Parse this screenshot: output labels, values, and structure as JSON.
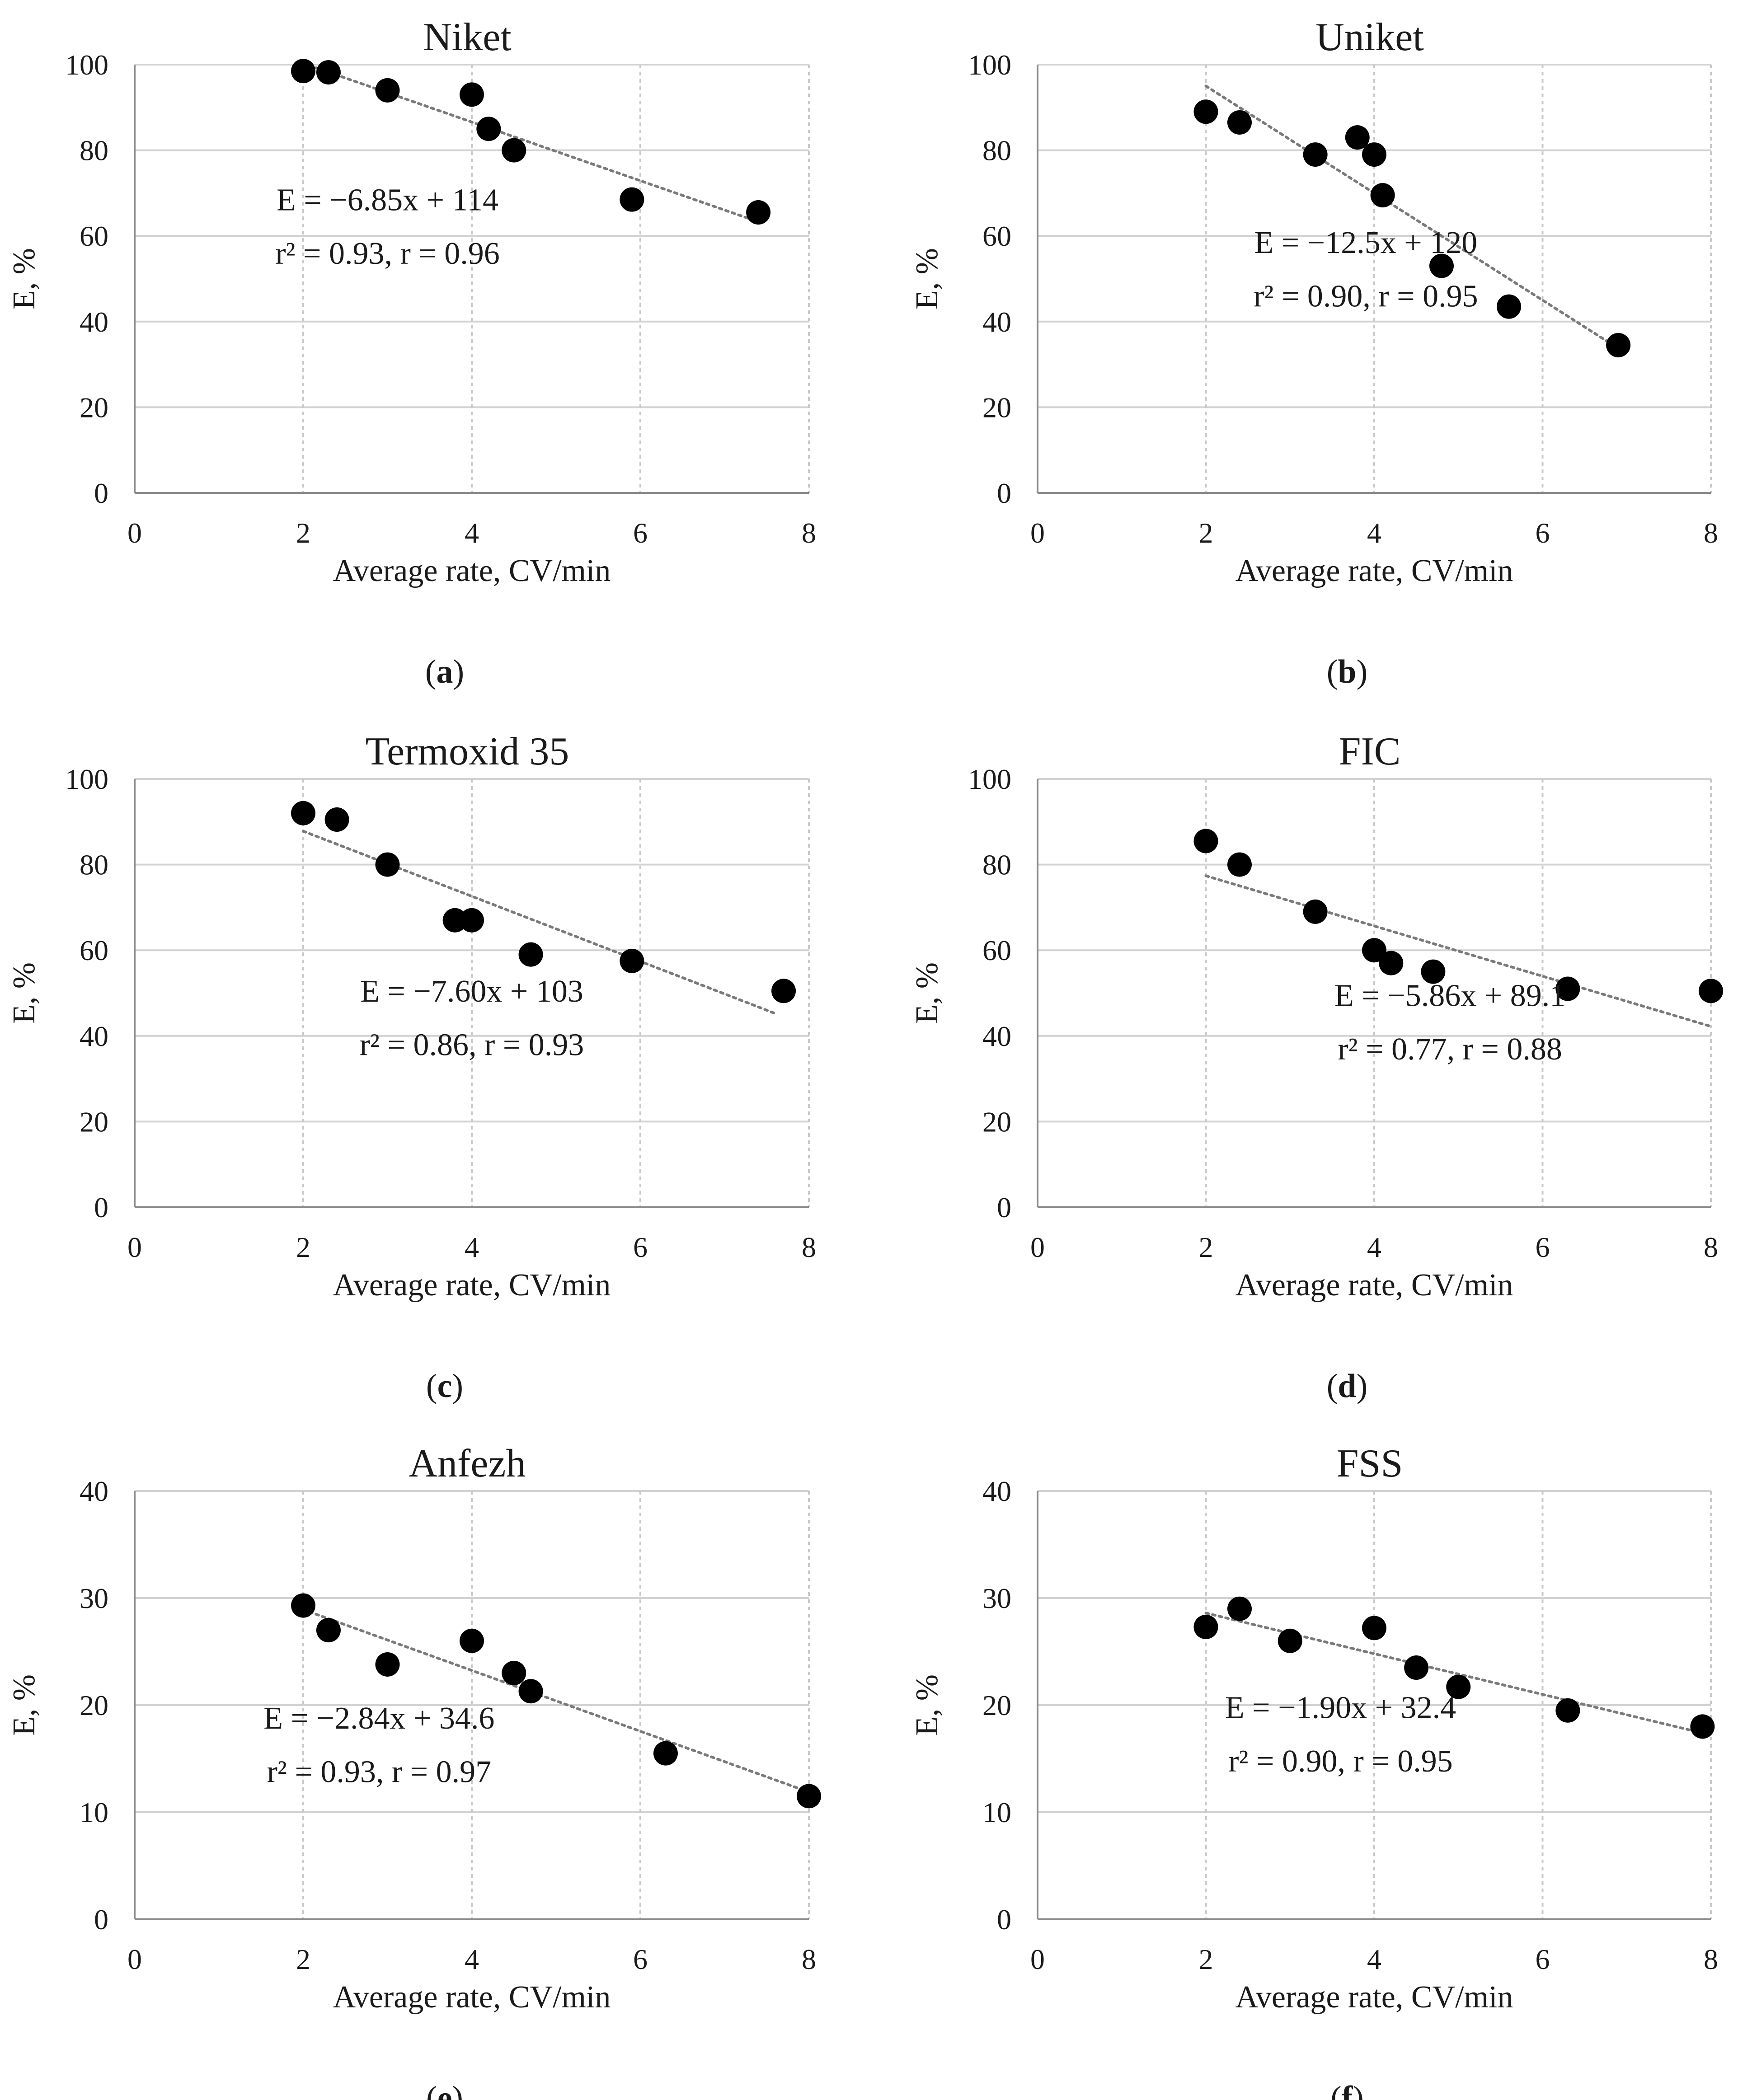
{
  "chart_data": [
    {
      "type": "scatter",
      "panel": "(a)",
      "panel_letter": "a",
      "title": "Niket",
      "xlabel": "Average rate, CV/min",
      "ylabel": "E, %",
      "xlim": [
        0,
        8
      ],
      "ylim": [
        0,
        100
      ],
      "xticks": [
        0,
        2,
        4,
        6,
        8
      ],
      "yticks": [
        0,
        20,
        40,
        60,
        80,
        100
      ],
      "x": [
        2.0,
        2.3,
        3.0,
        4.0,
        4.2,
        4.5,
        5.9,
        7.4
      ],
      "y": [
        98.5,
        98.2,
        94.0,
        93.0,
        85.0,
        80.0,
        68.5,
        65.5
      ],
      "trendline": {
        "x": [
          2.0,
          7.4
        ],
        "y": [
          100.3,
          63.3
        ]
      },
      "equation": "E = −6.85x + 114",
      "stats": "r² = 0.93, r = 0.96"
    },
    {
      "type": "scatter",
      "panel": "(b)",
      "panel_letter": "b",
      "title": "Uniket",
      "xlabel": "Average rate, CV/min",
      "ylabel": "E, %",
      "xlim": [
        0,
        8
      ],
      "ylim": [
        0,
        100
      ],
      "xticks": [
        0,
        2,
        4,
        6,
        8
      ],
      "yticks": [
        0,
        20,
        40,
        60,
        80,
        100
      ],
      "x": [
        2.0,
        2.4,
        3.3,
        3.8,
        4.0,
        4.1,
        4.8,
        5.6,
        6.9
      ],
      "y": [
        89.0,
        86.5,
        79.0,
        83.0,
        79.0,
        69.5,
        53.0,
        43.5,
        34.5
      ],
      "trendline": {
        "x": [
          2.0,
          6.9
        ],
        "y": [
          95.0,
          33.75
        ]
      },
      "equation": "E = −12.5x + 120",
      "stats": "r² = 0.90, r = 0.95"
    },
    {
      "type": "scatter",
      "panel": "(c)",
      "panel_letter": "c",
      "title": "Termoxid 35",
      "xlabel": "Average rate, CV/min",
      "ylabel": "E, %",
      "xlim": [
        0,
        8
      ],
      "ylim": [
        0,
        100
      ],
      "xticks": [
        0,
        2,
        4,
        6,
        8
      ],
      "yticks": [
        0,
        20,
        40,
        60,
        80,
        100
      ],
      "x": [
        2.0,
        2.4,
        3.0,
        3.8,
        4.0,
        4.7,
        5.9,
        7.7
      ],
      "y": [
        92.0,
        90.5,
        80.0,
        67.0,
        67.0,
        59.0,
        57.5,
        50.5
      ],
      "trendline": {
        "x": [
          2.0,
          7.6
        ],
        "y": [
          87.8,
          45.24
        ]
      },
      "equation": "E = −7.60x + 103",
      "stats": "r² = 0.86, r = 0.93"
    },
    {
      "type": "scatter",
      "panel": "(d)",
      "panel_letter": "d",
      "title": "FIC",
      "xlabel": "Average rate, CV/min",
      "ylabel": "E, %",
      "xlim": [
        0,
        8
      ],
      "ylim": [
        0,
        100
      ],
      "xticks": [
        0,
        2,
        4,
        6,
        8
      ],
      "yticks": [
        0,
        20,
        40,
        60,
        80,
        100
      ],
      "x": [
        2.0,
        2.4,
        3.3,
        4.0,
        4.2,
        4.7,
        6.3,
        8.0
      ],
      "y": [
        85.5,
        80.0,
        69.0,
        60.0,
        57.0,
        55.0,
        51.0,
        50.5
      ],
      "trendline": {
        "x": [
          2.0,
          8.0
        ],
        "y": [
          77.38,
          42.22
        ]
      },
      "equation": "E = −5.86x + 89.1",
      "stats": "r² = 0.77, r = 0.88"
    },
    {
      "type": "scatter",
      "panel": "(e)",
      "panel_letter": "e",
      "title": "Anfezh",
      "xlabel": "Average rate, CV/min",
      "ylabel": "E, %",
      "xlim": [
        0,
        8
      ],
      "ylim": [
        0,
        40
      ],
      "xticks": [
        0,
        2,
        4,
        6,
        8
      ],
      "yticks": [
        0,
        10,
        20,
        30,
        40
      ],
      "x": [
        2.0,
        2.3,
        3.0,
        4.0,
        4.5,
        4.7,
        6.3,
        8.0
      ],
      "y": [
        29.3,
        27.0,
        23.8,
        26.0,
        23.0,
        21.3,
        15.5,
        11.5
      ],
      "trendline": {
        "x": [
          2.0,
          8.0
        ],
        "y": [
          28.92,
          11.88
        ]
      },
      "equation": "E = −2.84x + 34.6",
      "stats": "r² = 0.93, r = 0.97"
    },
    {
      "type": "scatter",
      "panel": "(f)",
      "panel_letter": "f",
      "title": "FSS",
      "xlabel": "Average rate, CV/min",
      "ylabel": "E, %",
      "xlim": [
        0,
        8
      ],
      "ylim": [
        0,
        40
      ],
      "xticks": [
        0,
        2,
        4,
        6,
        8
      ],
      "yticks": [
        0,
        10,
        20,
        30,
        40
      ],
      "x": [
        2.0,
        2.4,
        3.0,
        4.0,
        4.5,
        5.0,
        6.3,
        7.9
      ],
      "y": [
        27.3,
        29.0,
        26.0,
        27.2,
        23.5,
        21.7,
        19.5,
        18.0
      ],
      "trendline": {
        "x": [
          2.0,
          7.9
        ],
        "y": [
          28.6,
          17.39
        ]
      },
      "equation": "E = −1.90x + 32.4",
      "stats": "r² = 0.90, r = 0.95"
    }
  ]
}
